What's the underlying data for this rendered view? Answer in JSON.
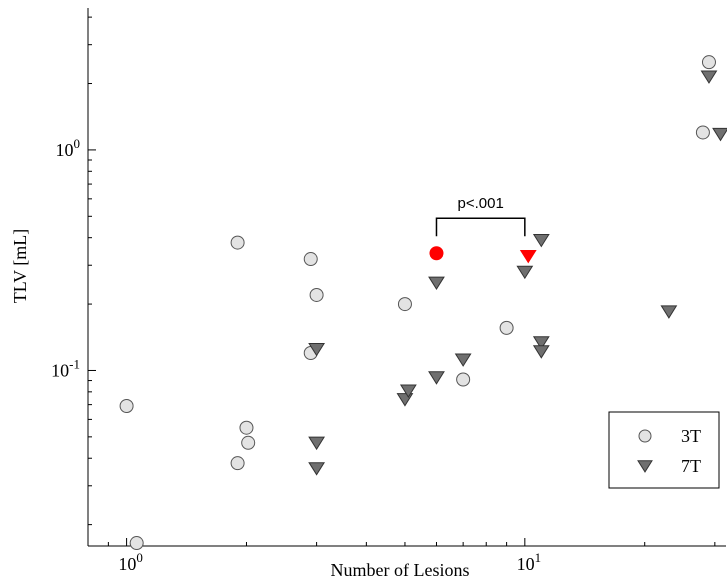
{
  "chart_data": {
    "type": "scatter",
    "title": "",
    "xlabel": "Number of Lesions",
    "ylabel": "TLV [mL]",
    "xscale": "log",
    "yscale": "log",
    "xlim": [
      0.8,
      32
    ],
    "ylim": [
      0.016,
      4.4
    ],
    "grid": false,
    "legend_position": "bottom-right",
    "x_ticks": [
      {
        "value": 1,
        "base": "10",
        "exp": "0"
      },
      {
        "value": 10,
        "base": "10",
        "exp": "1"
      }
    ],
    "y_ticks": [
      {
        "value": 0.1,
        "base": "10",
        "exp": "-1"
      },
      {
        "value": 1,
        "base": "10",
        "exp": "0"
      }
    ],
    "series": [
      {
        "name": "3T",
        "marker": "circle",
        "color": "#e3e3e3",
        "points": [
          {
            "x": 1,
            "y": 0.069
          },
          {
            "x": 1.06,
            "y": 0.0165
          },
          {
            "x": 1.9,
            "y": 0.38
          },
          {
            "x": 1.9,
            "y": 0.038
          },
          {
            "x": 2,
            "y": 0.055
          },
          {
            "x": 2.02,
            "y": 0.047
          },
          {
            "x": 2.9,
            "y": 0.32
          },
          {
            "x": 3,
            "y": 0.22
          },
          {
            "x": 2.9,
            "y": 0.12
          },
          {
            "x": 5,
            "y": 0.2
          },
          {
            "x": 7,
            "y": 0.091
          },
          {
            "x": 9,
            "y": 0.156
          },
          {
            "x": 28,
            "y": 1.2
          },
          {
            "x": 29,
            "y": 2.5
          }
        ]
      },
      {
        "name": "7T",
        "marker": "triangle-down",
        "color": "#6f6f6f",
        "points": [
          {
            "x": 3,
            "y": 0.125
          },
          {
            "x": 3,
            "y": 0.047
          },
          {
            "x": 3,
            "y": 0.036
          },
          {
            "x": 5,
            "y": 0.074
          },
          {
            "x": 5.1,
            "y": 0.081
          },
          {
            "x": 6,
            "y": 0.093
          },
          {
            "x": 6,
            "y": 0.25
          },
          {
            "x": 7,
            "y": 0.112
          },
          {
            "x": 10,
            "y": 0.28
          },
          {
            "x": 11,
            "y": 0.39
          },
          {
            "x": 11,
            "y": 0.134
          },
          {
            "x": 11,
            "y": 0.122
          },
          {
            "x": 23,
            "y": 0.185
          },
          {
            "x": 29,
            "y": 2.15
          },
          {
            "x": 31,
            "y": 1.18
          }
        ]
      }
    ],
    "highlighted": [
      {
        "series": "3T",
        "marker": "circle",
        "color": "#ff0000",
        "x": 6,
        "y": 0.34
      },
      {
        "series": "7T",
        "marker": "triangle-down",
        "color": "#ff0000",
        "x": 10.2,
        "y": 0.33
      }
    ],
    "annotation": {
      "text": "p<.001",
      "x_from": 6,
      "x_to": 10,
      "y": 0.49
    }
  }
}
